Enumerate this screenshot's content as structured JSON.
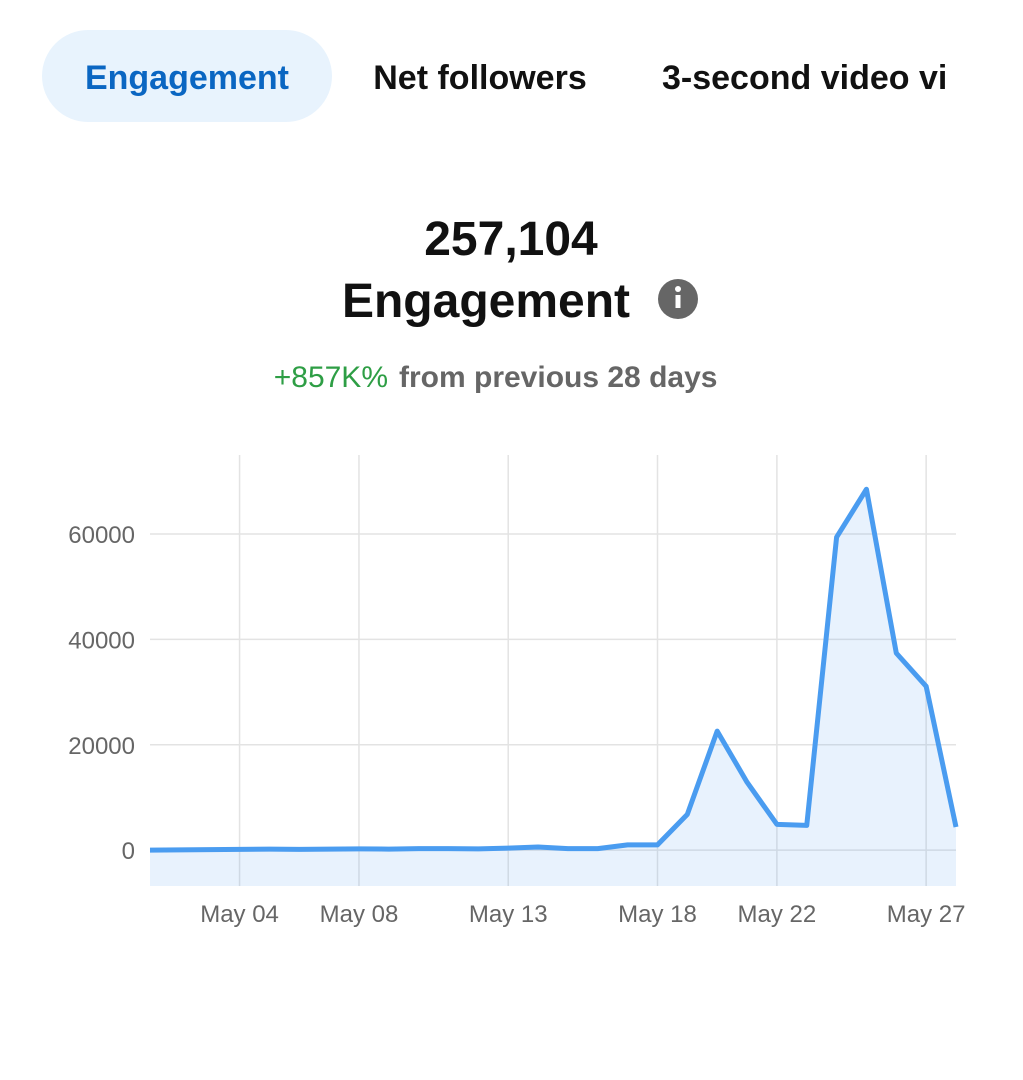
{
  "tabs": [
    "Engagement",
    "Net followers",
    "3-second video vi"
  ],
  "summary": {
    "total": "257,104",
    "metric": "Engagement",
    "change": "+857K%",
    "change_note": "from previous 28 days"
  },
  "chart_data": {
    "type": "line",
    "x": [
      1,
      2,
      3,
      4,
      5,
      6,
      7,
      8,
      9,
      10,
      11,
      12,
      13,
      14,
      15,
      16,
      17,
      18,
      19,
      20,
      21,
      22,
      23,
      24,
      25,
      26,
      27,
      28
    ],
    "series": [
      {
        "color": "#4a9cf0",
        "values": [
          0,
          50,
          100,
          150,
          200,
          150,
          200,
          250,
          200,
          300,
          300,
          250,
          400,
          600,
          300,
          300,
          1000,
          1000,
          6800,
          22600,
          12900,
          4900,
          4700,
          59400,
          68500,
          37400,
          31100,
          4400
        ]
      }
    ],
    "xlim": [
      1,
      28
    ],
    "xticks": [
      {
        "value": 4,
        "label": "May 04"
      },
      {
        "value": 8,
        "label": "May 08"
      },
      {
        "value": 13,
        "label": "May 13"
      },
      {
        "value": 18,
        "label": "May 18"
      },
      {
        "value": 22,
        "label": "May 22"
      },
      {
        "value": 27,
        "label": "May 27"
      }
    ],
    "ylim": [
      -6800,
      75000
    ],
    "yticks": [
      0,
      20000,
      40000,
      60000
    ],
    "grid": true
  }
}
